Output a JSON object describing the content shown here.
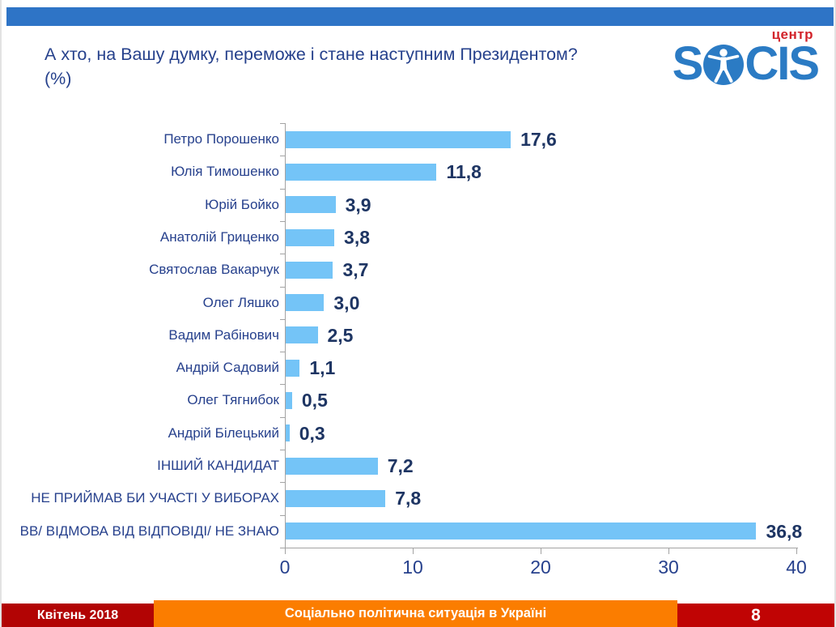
{
  "logo": {
    "brand_prefix": "S",
    "brand_suffix": "CIS",
    "tagline": "центр",
    "brand_color": "#2b7bc4",
    "tagline_color": "#d2232a"
  },
  "theme": {
    "top_band_color": "#2e74c6",
    "title_color": "#26418c",
    "axis_color": "#a3a3a3"
  },
  "chart_data": {
    "type": "bar",
    "orientation": "horizontal",
    "title": "А хто, на Вашу думку, переможе і стане наступним Президентом? (%)",
    "categories": [
      "Петро Порошенко",
      "Юлія Тимошенко",
      "Юрій Бойко",
      "Анатолій Гриценко",
      "Святослав Вакарчук",
      "Олег Ляшко",
      "Вадим Рабінович",
      "Андрій Садовий",
      "Олег Тягнибок",
      "Андрій Білецький",
      "ІНШИЙ КАНДИДАТ",
      "НЕ ПРИЙМАВ БИ УЧАСТІ У ВИБОРАХ",
      "ВВ/ ВІДМОВА ВІД ВІДПОВІДІ/ НЕ ЗНАЮ"
    ],
    "values": [
      17.6,
      11.8,
      3.9,
      3.8,
      3.7,
      3.0,
      2.5,
      1.1,
      0.5,
      0.3,
      7.2,
      7.8,
      36.8
    ],
    "value_labels": [
      "17,6",
      "11,8",
      "3,9",
      "3,8",
      "3,7",
      "3,0",
      "2,5",
      "1,1",
      "0,5",
      "0,3",
      "7,2",
      "7,8",
      "36,8"
    ],
    "xlabel": "",
    "ylabel": "",
    "xlim": [
      0,
      40
    ],
    "x_ticks": [
      0,
      10,
      20,
      30,
      40
    ],
    "grid": false,
    "legend": null,
    "bar_color": "#74c4f7",
    "value_label_color": "#1e3563",
    "category_label_color": "#27418d"
  },
  "footer": {
    "date": "Квітень 2018",
    "subject": "Соціально політична ситуація в Україні",
    "page_number": "8",
    "date_bg": "#b20404",
    "subject_bg": "#fb7d00",
    "page_bg": "#c00404"
  }
}
